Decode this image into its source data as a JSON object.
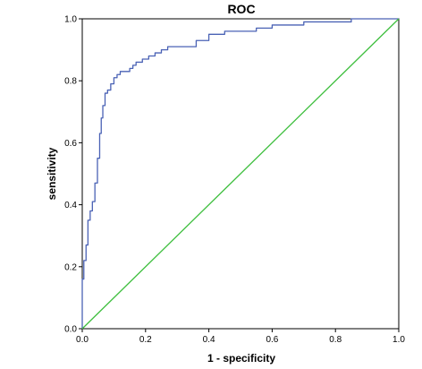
{
  "chart_data": {
    "type": "line",
    "title": "ROC",
    "xlabel": "1 - specificity",
    "ylabel": "sensitivity",
    "xlim": [
      0,
      1
    ],
    "ylim": [
      0,
      1
    ],
    "xticks": [
      "0.0",
      "0.2",
      "0.4",
      "0.6",
      "0.8",
      "1.0"
    ],
    "yticks": [
      "0.0",
      "0.2",
      "0.4",
      "0.6",
      "0.8",
      "1.0"
    ],
    "grid": false,
    "series": [
      {
        "color": "#4a62b5",
        "x": [
          0,
          0,
          0.005,
          0.005,
          0.012,
          0.012,
          0.018,
          0.018,
          0.025,
          0.025,
          0.032,
          0.032,
          0.04,
          0.04,
          0.048,
          0.048,
          0.055,
          0.055,
          0.06,
          0.06,
          0.065,
          0.065,
          0.072,
          0.072,
          0.08,
          0.08,
          0.09,
          0.09,
          0.1,
          0.1,
          0.11,
          0.11,
          0.12,
          0.12,
          0.15,
          0.15,
          0.16,
          0.16,
          0.17,
          0.17,
          0.19,
          0.19,
          0.21,
          0.21,
          0.23,
          0.23,
          0.25,
          0.25,
          0.27,
          0.27,
          0.36,
          0.36,
          0.4,
          0.4,
          0.45,
          0.45,
          0.55,
          0.55,
          0.6,
          0.6,
          0.7,
          0.7,
          0.85,
          0.85,
          1.0
        ],
        "y": [
          0,
          0.16,
          0.16,
          0.22,
          0.22,
          0.27,
          0.27,
          0.35,
          0.35,
          0.38,
          0.38,
          0.41,
          0.41,
          0.47,
          0.47,
          0.55,
          0.55,
          0.63,
          0.63,
          0.68,
          0.68,
          0.72,
          0.72,
          0.76,
          0.76,
          0.77,
          0.77,
          0.79,
          0.79,
          0.81,
          0.81,
          0.82,
          0.82,
          0.83,
          0.83,
          0.84,
          0.84,
          0.85,
          0.85,
          0.86,
          0.86,
          0.87,
          0.87,
          0.88,
          0.88,
          0.89,
          0.89,
          0.9,
          0.9,
          0.91,
          0.91,
          0.93,
          0.93,
          0.95,
          0.95,
          0.96,
          0.96,
          0.97,
          0.97,
          0.98,
          0.98,
          0.99,
          0.99,
          1.0,
          1.0
        ]
      },
      {
        "color": "#3fbf3f",
        "x": [
          0,
          1
        ],
        "y": [
          0,
          1
        ]
      }
    ]
  }
}
